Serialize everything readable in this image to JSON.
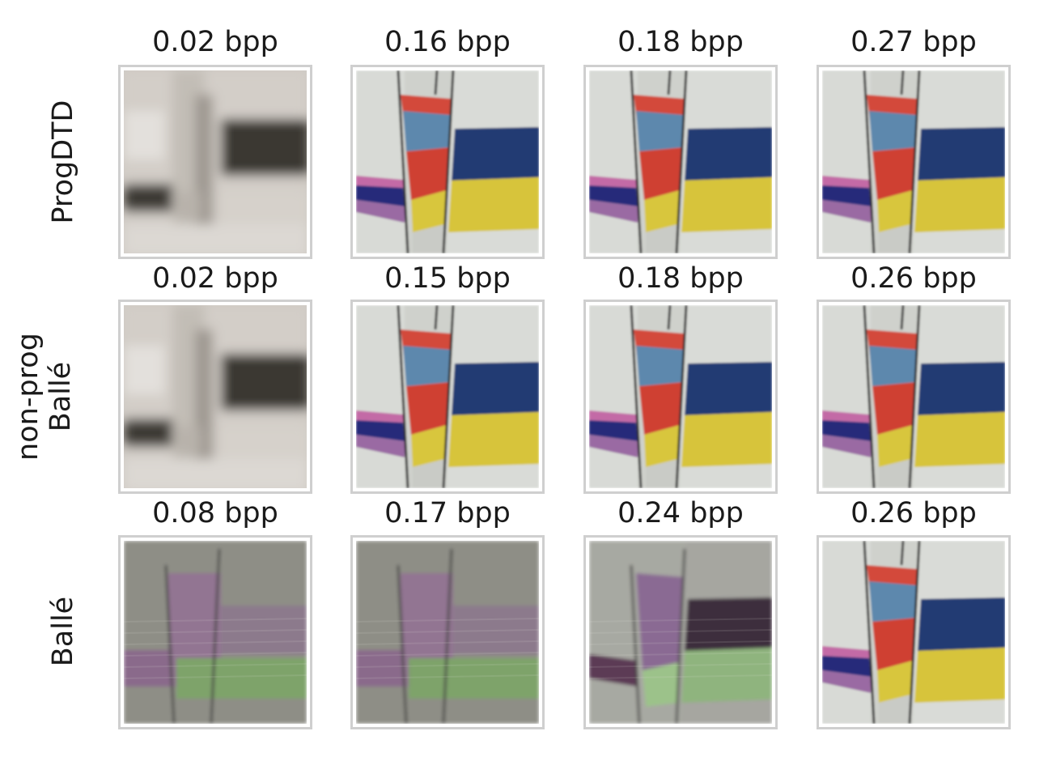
{
  "rows": [
    {
      "label": "ProgDTD",
      "tiles": [
        {
          "bpp": "0.02 bpp",
          "style": "gray-blur"
        },
        {
          "bpp": "0.16 bpp",
          "style": "color"
        },
        {
          "bpp": "0.18 bpp",
          "style": "color"
        },
        {
          "bpp": "0.27 bpp",
          "style": "color"
        }
      ]
    },
    {
      "label": "non-prog\nBallé",
      "tiles": [
        {
          "bpp": "0.02 bpp",
          "style": "gray-blur"
        },
        {
          "bpp": "0.15 bpp",
          "style": "color"
        },
        {
          "bpp": "0.18 bpp",
          "style": "color"
        },
        {
          "bpp": "0.26 bpp",
          "style": "color"
        }
      ]
    },
    {
      "label": "Ballé",
      "tiles": [
        {
          "bpp": "0.08 bpp",
          "style": "artifact-pink-green"
        },
        {
          "bpp": "0.17 bpp",
          "style": "artifact-pink-green"
        },
        {
          "bpp": "0.24 bpp",
          "style": "artifact-partial"
        },
        {
          "bpp": "0.26 bpp",
          "style": "color"
        }
      ]
    }
  ]
}
